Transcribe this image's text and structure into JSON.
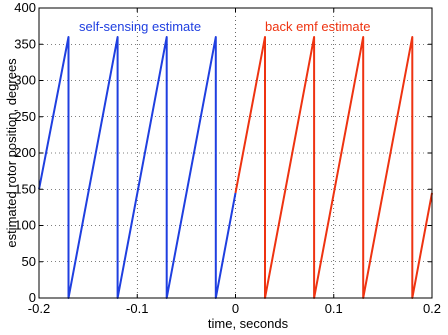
{
  "chart_data": {
    "type": "line",
    "title": "",
    "xlabel": "time, seconds",
    "ylabel": "estimated rotor position, degrees",
    "xlim": [
      -0.2,
      0.2
    ],
    "ylim": [
      0,
      400
    ],
    "xticks": [
      -0.2,
      -0.1,
      0,
      0.1,
      0.2
    ],
    "xtick_labels": [
      "-0.2",
      "-0.1",
      "0",
      "0.1",
      "0.2"
    ],
    "yticks": [
      0,
      50,
      100,
      150,
      200,
      250,
      300,
      350,
      400
    ],
    "ytick_labels": [
      "0",
      "50",
      "100",
      "150",
      "200",
      "250",
      "300",
      "350",
      "400"
    ],
    "grid": true,
    "annotations": [
      {
        "text": "self-sensing estimate",
        "color": "#1f3fe0"
      },
      {
        "text": "back emf estimate",
        "color": "#ee3311"
      }
    ],
    "series": [
      {
        "color": "#1f3fe0",
        "points": [
          [
            -0.2,
            150
          ],
          [
            -0.17,
            360
          ],
          [
            -0.17,
            0
          ],
          [
            -0.12,
            360
          ],
          [
            -0.12,
            0
          ],
          [
            -0.07,
            360
          ],
          [
            -0.07,
            0
          ],
          [
            -0.02,
            360
          ],
          [
            -0.02,
            0
          ],
          [
            0.0,
            145
          ]
        ]
      },
      {
        "color": "#ee3311",
        "points": [
          [
            0.0,
            145
          ],
          [
            0.03,
            360
          ],
          [
            0.03,
            0
          ],
          [
            0.08,
            360
          ],
          [
            0.08,
            0
          ],
          [
            0.13,
            360
          ],
          [
            0.13,
            0
          ],
          [
            0.18,
            360
          ],
          [
            0.18,
            0
          ],
          [
            0.2,
            145
          ]
        ]
      }
    ]
  }
}
